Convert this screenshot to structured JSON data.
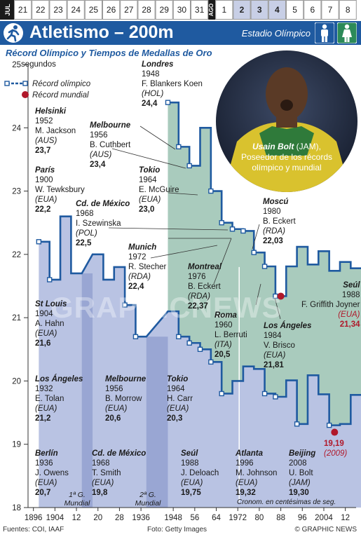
{
  "date_strip": {
    "month_jul": "JUL",
    "month_ago": "AGO",
    "days": [
      "21",
      "22",
      "23",
      "24",
      "25",
      "26",
      "27",
      "28",
      "29",
      "30",
      "31",
      "1",
      "2",
      "3",
      "4",
      "5",
      "6",
      "7",
      "8"
    ],
    "highlight_days": [
      "2",
      "3",
      "4"
    ]
  },
  "header": {
    "title": "Atletismo – 200m",
    "venue": "Estadio Olímpico"
  },
  "subtitle": "Récord Olímpico y Tiempos de Medallas de Oro",
  "legend": {
    "olympic_record": "Récord olímpico",
    "world_record": "Récord mundial"
  },
  "y_unit": "segundos",
  "photo_caption": {
    "name": "Usain Bolt",
    "country": "(JAM),",
    "line2": "Poseedor de los récords",
    "line3": "olímpico y mundial"
  },
  "annotations": [
    {
      "id": "londres-1948",
      "city": "Londres",
      "year": "1948",
      "athlete": "F. Blankers Koen",
      "nation": "(HOL)",
      "time": "24,4"
    },
    {
      "id": "helsinki-1952",
      "city": "Helsinki",
      "year": "1952",
      "athlete": "M. Jackson",
      "nation": "(AUS)",
      "time": "23,7"
    },
    {
      "id": "melbourne-1956w",
      "city": "Melbourne",
      "year": "1956",
      "athlete": "B. Cuthbert",
      "nation": "(AUS)",
      "time": "23,4"
    },
    {
      "id": "tokio-1964w",
      "city": "Tokio",
      "year": "1964",
      "athlete": "E. McGuire",
      "nation": "(EUA)",
      "time": "23,0"
    },
    {
      "id": "paris-1900",
      "city": "París",
      "year": "1900",
      "athlete": "W. Tewksbury",
      "nation": "(EUA)",
      "time": "22,2"
    },
    {
      "id": "mexico-1968w",
      "city": "Cd. de México",
      "year": "1968",
      "athlete": "I. Szewinska",
      "nation": "(POL)",
      "time": "22,5"
    },
    {
      "id": "munich-1972",
      "city": "Munich",
      "year": "1972",
      "athlete": "R. Stecher",
      "nation": "(RDA)",
      "time": "22,4"
    },
    {
      "id": "montreal-1976",
      "city": "Montreal",
      "year": "1976",
      "athlete": "B. Eckert",
      "nation": "(RDA)",
      "time": "22,37"
    },
    {
      "id": "moscu-1980",
      "city": "Moscú",
      "year": "1980",
      "athlete": "B. Eckert",
      "nation": "(RDA)",
      "time": "22,03"
    },
    {
      "id": "stlouis-1904",
      "city": "St Louis",
      "year": "1904",
      "athlete": "A. Hahn",
      "nation": "(EUA)",
      "time": "21,6"
    },
    {
      "id": "roma-1960",
      "city": "Roma",
      "year": "1960",
      "athlete": "L. Berruti",
      "nation": "(ITA)",
      "time": "20,5"
    },
    {
      "id": "losangeles-1984",
      "city": "Los Ángeles",
      "year": "1984",
      "athlete": "V. Brisco",
      "nation": "(EUA)",
      "time": "21,81"
    },
    {
      "id": "seul-1988w",
      "city": "Seúl",
      "year": "1988",
      "athlete": "F. Griffith Joyner",
      "nation": "(EUA)",
      "time": "21,34",
      "red": true
    },
    {
      "id": "losangeles-1932",
      "city": "Los Ángeles",
      "year": "1932",
      "athlete": "E. Tolan",
      "nation": "(EUA)",
      "time": "21,2"
    },
    {
      "id": "melbourne-1956m",
      "city": "Melbourne",
      "year": "1956",
      "athlete": "B. Morrow",
      "nation": "(EUA)",
      "time": "20,6"
    },
    {
      "id": "tokio-1964m",
      "city": "Tokio",
      "year": "1964",
      "athlete": "H. Carr",
      "nation": "(EUA)",
      "time": "20,3"
    },
    {
      "id": "berlin-1936",
      "city": "Berlín",
      "year": "1936",
      "athlete": "J. Owens",
      "nation": "(EUA)",
      "time": "20,7"
    },
    {
      "id": "mexico-1968m",
      "city": "Cd. de México",
      "year": "1968",
      "athlete": "T. Smith",
      "nation": "(EUA)",
      "time": "19,8"
    },
    {
      "id": "seul-1988m",
      "city": "Seúl",
      "year": "1988",
      "athlete": "J. Deloach",
      "nation": "(EUA)",
      "time": "19,75"
    },
    {
      "id": "atlanta-1996",
      "city": "Atlanta",
      "year": "1996",
      "athlete": "M. Johnson",
      "nation": "(EUA)",
      "time": "19,32"
    },
    {
      "id": "beijing-2008",
      "city": "Beijing",
      "year": "2008",
      "athlete": "U. Bolt",
      "nation": "(JAM)",
      "time": "19,30"
    },
    {
      "id": "wr-2009",
      "time": "19,19",
      "nation": "(2009)",
      "red": true
    }
  ],
  "wars": {
    "ww1": [
      "1ª G.",
      "Mundial"
    ],
    "ww2": [
      "2ª G.",
      "Mundial"
    ]
  },
  "timing_note": "Cronom. en centésimas de seg.",
  "sources": "Fuentes: COI, IAAF",
  "credit": "Foto: Getty Images",
  "copyright": "© GRAPHIC NEWS",
  "watermark": "GRAPHICNEWS",
  "colors": {
    "men_fill": "#b9c3e3",
    "women_fill": "#a9cbbd",
    "line": "#1f5aa0",
    "header": "#1f5aa0",
    "record_red": "#b0182a"
  },
  "chart_data": {
    "type": "line",
    "x_ticks": [
      "1896",
      "1904",
      "12",
      "20",
      "28",
      "1936",
      "1948",
      "56",
      "64",
      "1972",
      "80",
      "88",
      "96",
      "2004",
      "12"
    ],
    "y_ticks": [
      "18",
      "19",
      "20",
      "21",
      "22",
      "23",
      "24",
      "25"
    ],
    "ylim": [
      18,
      25
    ],
    "xlim": [
      1894,
      2016
    ],
    "series": [
      {
        "name": "men",
        "points": [
          [
            1900,
            22.2
          ],
          [
            1904,
            21.6
          ],
          [
            1908,
            22.6
          ],
          [
            1912,
            21.7
          ],
          [
            1920,
            22.0
          ],
          [
            1924,
            21.6
          ],
          [
            1928,
            21.8
          ],
          [
            1932,
            21.2
          ],
          [
            1936,
            20.7
          ],
          [
            1948,
            21.1
          ],
          [
            1952,
            20.7
          ],
          [
            1956,
            20.6
          ],
          [
            1960,
            20.5
          ],
          [
            1964,
            20.3
          ],
          [
            1968,
            19.8
          ],
          [
            1972,
            20.0
          ],
          [
            1976,
            20.23
          ],
          [
            1980,
            20.19
          ],
          [
            1984,
            19.8
          ],
          [
            1988,
            19.75
          ],
          [
            1992,
            20.01
          ],
          [
            1996,
            19.32
          ],
          [
            2000,
            20.09
          ],
          [
            2004,
            19.79
          ],
          [
            2008,
            19.3
          ],
          [
            2012,
            19.32
          ],
          [
            2016,
            19.78
          ]
        ],
        "records": [
          1900,
          1904,
          1932,
          1936,
          1952,
          1956,
          1960,
          1964,
          1968,
          1984,
          1988,
          1996,
          2008
        ]
      },
      {
        "name": "women",
        "points": [
          [
            1948,
            24.4
          ],
          [
            1952,
            23.7
          ],
          [
            1956,
            23.4
          ],
          [
            1960,
            24.0
          ],
          [
            1964,
            23.0
          ],
          [
            1968,
            22.5
          ],
          [
            1972,
            22.4
          ],
          [
            1976,
            22.37
          ],
          [
            1980,
            22.03
          ],
          [
            1984,
            21.81
          ],
          [
            1988,
            21.34
          ],
          [
            1992,
            21.81
          ],
          [
            1996,
            22.12
          ],
          [
            2000,
            21.84
          ],
          [
            2004,
            22.05
          ],
          [
            2008,
            21.74
          ],
          [
            2012,
            21.88
          ],
          [
            2016,
            21.78
          ]
        ],
        "records": [
          1948,
          1952,
          1956,
          1964,
          1968,
          1972,
          1976,
          1980,
          1984,
          1988
        ]
      }
    ],
    "world_records": [
      {
        "year": 1988,
        "value": 21.34,
        "label": "21,34"
      },
      {
        "year": 2009,
        "value": 19.19,
        "label": "19,19"
      }
    ]
  }
}
